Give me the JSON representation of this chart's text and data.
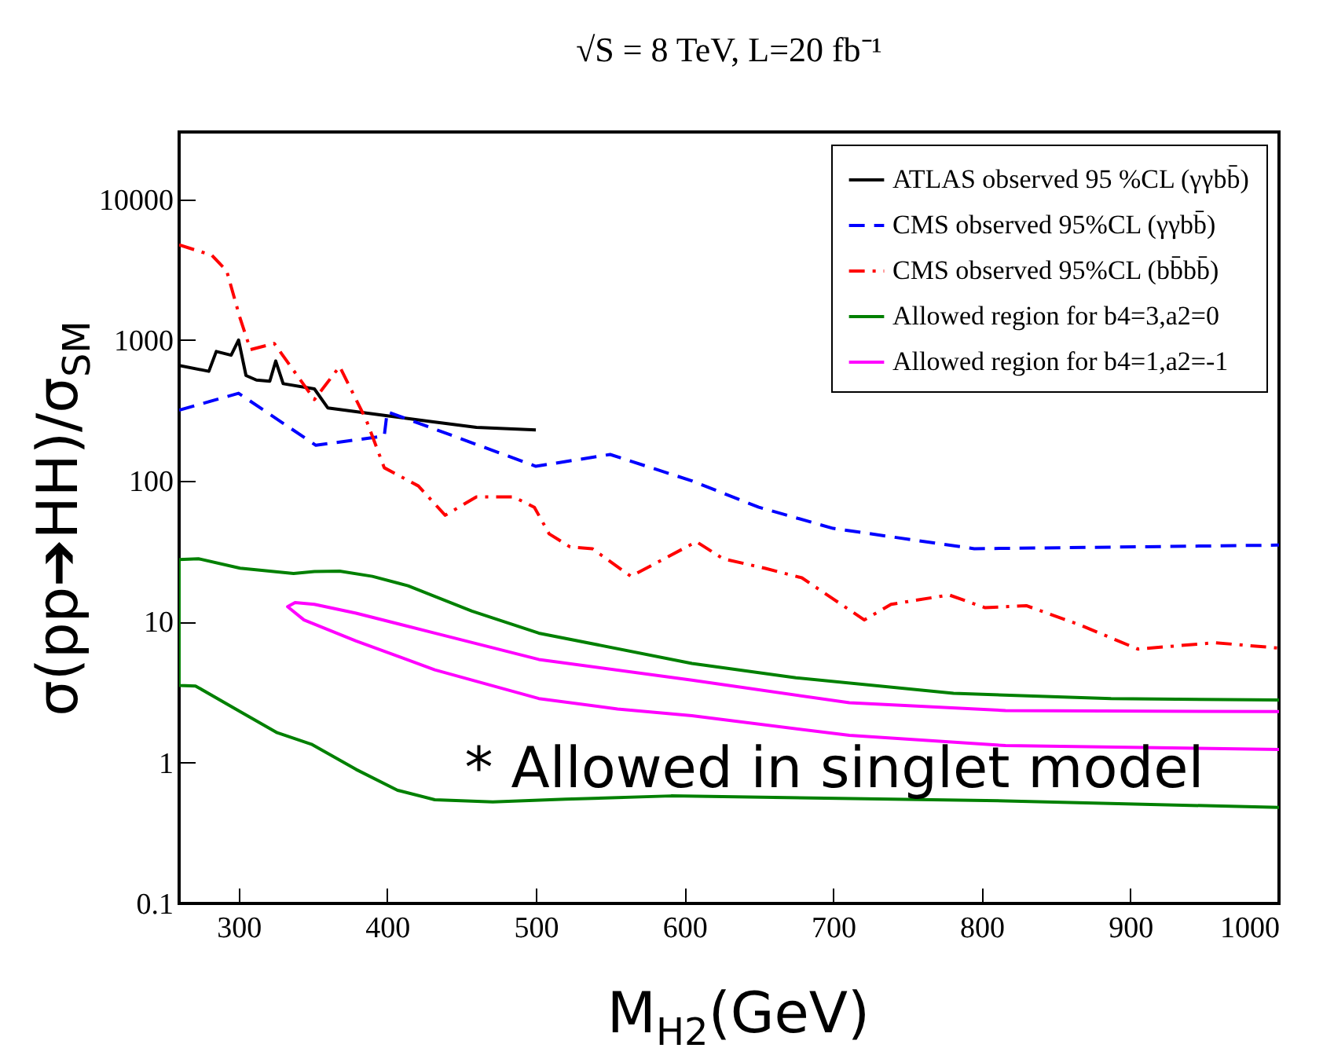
{
  "chart_data": {
    "type": "line",
    "title": "√S = 8 TeV, L=20 fb⁻¹",
    "xlabel": "M$_{H2}$(GeV)",
    "ylabel": "σ(pp➔HH)/σ$_{SM}$",
    "log": "y",
    "xlim": [
      260,
      1000
    ],
    "ylim": [
      0.1,
      30000
    ],
    "xticks": [
      300,
      400,
      500,
      600,
      700,
      800,
      900,
      1000
    ],
    "yticks": [
      0.1,
      1,
      10,
      100,
      1000,
      10000
    ],
    "legend": "top right",
    "annotations": [
      "* Allowed in singlet model"
    ],
    "series": [
      {
        "name": "ATLAS observed 95 %CL (γγbb̄)",
        "color": "#000000",
        "line_style": "solid",
        "x": [
          260,
          280,
          285,
          295,
          300,
          305,
          312,
          321,
          325,
          330,
          351,
          360,
          400,
          428,
          460,
          500
        ],
        "values": [
          660,
          600,
          830,
          780,
          1000,
          560,
          520,
          510,
          710,
          490,
          450,
          330,
          290,
          265,
          240,
          230
        ]
      },
      {
        "name": "CMS observed 95%CL (γγbb̄)",
        "color": "#0000ff",
        "line_style": "dashed",
        "x": [
          260,
          300,
          352,
          398,
          400,
          500,
          550,
          605,
          650,
          700,
          795,
          1000
        ],
        "values": [
          318,
          419,
          179,
          208,
          310,
          127,
          154,
          100,
          65,
          46,
          33,
          35
        ]
      },
      {
        "name": "CMS observed 95%CL (bb̄bb̄)",
        "color": "#ff0000",
        "line_style": "dashdot",
        "x": [
          260,
          282,
          292,
          301,
          308,
          324,
          351,
          368,
          386,
          398,
          421,
          439,
          460,
          485,
          499,
          509,
          523,
          538,
          564,
          608,
          626,
          654,
          679,
          721,
          739,
          778,
          802,
          830,
          866,
          905,
          957,
          1000
        ],
        "values": [
          4740,
          4000,
          3100,
          1430,
          855,
          946,
          378,
          649,
          269,
          124,
          92,
          57,
          77,
          77,
          65,
          42,
          34,
          33,
          21,
          37,
          28,
          24,
          20.5,
          10.3,
          13.3,
          15.5,
          12.6,
          13,
          9.5,
          6.4,
          7.1,
          6.5
        ]
      },
      {
        "name": "Allowed region for b4=3,a2=0",
        "color": "#008000",
        "line_style": "solid",
        "x": [
          1000,
          887,
          781,
          675,
          605,
          502,
          457,
          414,
          390,
          368,
          351,
          337,
          301,
          273,
          260,
          260,
          271,
          301,
          326,
          349,
          379,
          407,
          432,
          471,
          520,
          591,
          816,
          1000
        ],
        "values": [
          2.78,
          2.85,
          3.1,
          4.0,
          5.06,
          8.3,
          11.9,
          18,
          21,
          22.9,
          22.7,
          22,
          24,
          28,
          27.6,
          3.53,
          3.5,
          2.3,
          1.63,
          1.35,
          0.895,
          0.636,
          0.545,
          0.526,
          0.55,
          0.58,
          0.535,
          0.48
        ]
      },
      {
        "name": "Allowed region for b4=1,a2=-1",
        "color": "#ff00ff",
        "line_style": "solid",
        "x": [
          1000,
          816,
          711,
          605,
          502,
          432,
          379,
          351,
          338,
          333,
          344,
          379,
          432,
          502,
          555,
          605,
          711,
          816,
          1000
        ],
        "values": [
          2.3,
          2.34,
          2.66,
          3.85,
          5.4,
          8.3,
          11.5,
          13.3,
          13.7,
          12.8,
          10.3,
          7.3,
          4.56,
          2.85,
          2.4,
          2.15,
          1.56,
          1.32,
          1.24
        ]
      }
    ]
  }
}
